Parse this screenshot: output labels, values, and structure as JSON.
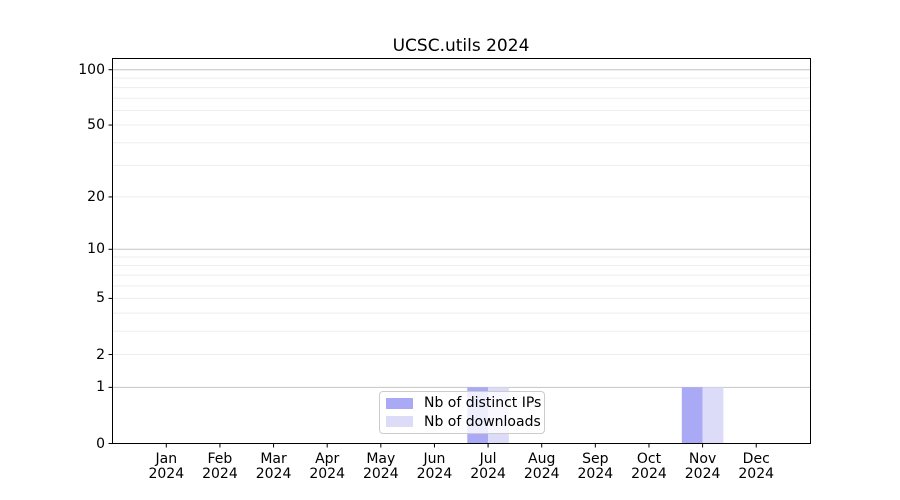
{
  "chart_data": {
    "type": "bar",
    "title": "UCSC.utils 2024",
    "x_axis": {
      "categories": [
        "Jan",
        "Feb",
        "Mar",
        "Apr",
        "May",
        "Jun",
        "Jul",
        "Aug",
        "Sep",
        "Oct",
        "Nov",
        "Dec"
      ],
      "year": "2024"
    },
    "y_axis": {
      "scale": "log1p",
      "ticks": [
        0,
        1,
        2,
        5,
        10,
        20,
        50,
        100
      ],
      "major_gridlines": [
        1,
        10,
        100
      ],
      "minor_gridlines": [
        2,
        3,
        4,
        5,
        6,
        7,
        8,
        9,
        20,
        30,
        40,
        50,
        60,
        70,
        80,
        90
      ],
      "ylim": [
        0,
        115
      ]
    },
    "series": [
      {
        "name": "Nb of distinct IPs",
        "color": "#aaa9f6",
        "values": [
          0,
          0,
          0,
          0,
          0,
          0,
          1,
          0,
          0,
          0,
          1,
          0
        ]
      },
      {
        "name": "Nb of downloads",
        "color": "#dcdcf9",
        "values": [
          0,
          0,
          0,
          0,
          0,
          0,
          1,
          0,
          0,
          0,
          1,
          0
        ]
      }
    ],
    "legend": {
      "position": "lower center"
    },
    "colors": {
      "grid_major": "#c4c4c4",
      "grid_minor": "#ededed",
      "axis": "#000000",
      "legend_border": "#cccccc",
      "background": "#ffffff"
    }
  }
}
